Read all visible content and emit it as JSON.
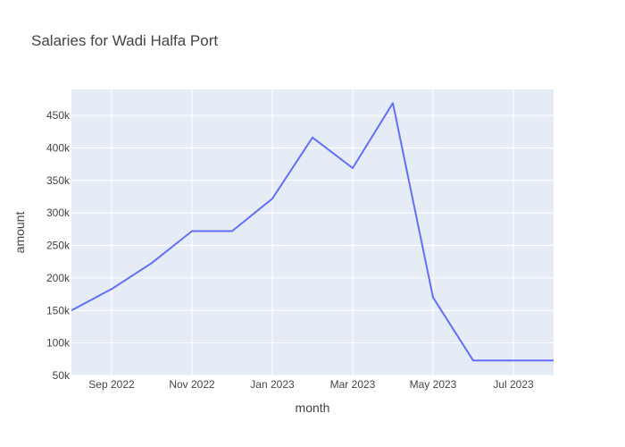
{
  "chart_data": {
    "type": "line",
    "title": "Salaries for Wadi Halfa Port",
    "xlabel": "month",
    "ylabel": "amount",
    "x": [
      "2022-08",
      "2022-09",
      "2022-10",
      "2022-11",
      "2022-12",
      "2023-01",
      "2023-02",
      "2023-03",
      "2023-04",
      "2023-05",
      "2023-06",
      "2023-07",
      "2023-08"
    ],
    "series": [
      {
        "values": [
          150000,
          183000,
          223000,
          272000,
          272000,
          322000,
          416000,
          369000,
          469000,
          170000,
          73000,
          73000,
          73000
        ],
        "color": "#636efa"
      }
    ],
    "ylim": [
      50000,
      490000
    ],
    "yticks": [
      50000,
      100000,
      150000,
      200000,
      250000,
      300000,
      350000,
      400000,
      450000
    ],
    "ytick_labels": [
      "50k",
      "100k",
      "150k",
      "200k",
      "250k",
      "300k",
      "350k",
      "400k",
      "450k"
    ],
    "xticks": [
      "2022-09",
      "2022-11",
      "2023-01",
      "2023-03",
      "2023-05",
      "2023-07"
    ],
    "xtick_labels": [
      "Sep 2022",
      "Nov 2022",
      "Jan 2023",
      "Mar 2023",
      "May 2023",
      "Jul 2023"
    ],
    "grid": true,
    "plot_bg": "#e5ecf6",
    "grid_color": "#ffffff"
  }
}
